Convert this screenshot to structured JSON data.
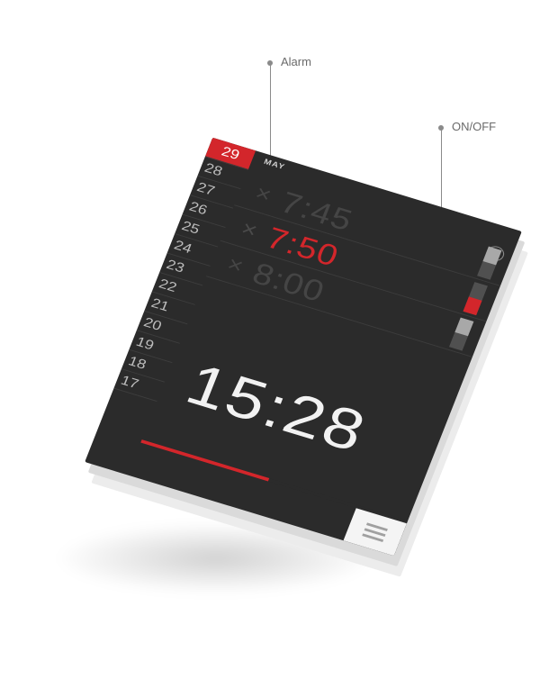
{
  "callouts": {
    "alarm_label": "Alarm",
    "onoff_label": "ON/OFF"
  },
  "header": {
    "month": "MAY",
    "badge_count": "3"
  },
  "dates": [
    {
      "label": "29",
      "active": true
    },
    {
      "label": "28"
    },
    {
      "label": "27"
    },
    {
      "label": "26"
    },
    {
      "label": "25"
    },
    {
      "label": "24"
    },
    {
      "label": "23"
    },
    {
      "label": "22"
    },
    {
      "label": "21"
    },
    {
      "label": "20"
    },
    {
      "label": "19"
    },
    {
      "label": "18"
    },
    {
      "label": "17"
    }
  ],
  "alarms": [
    {
      "time": "7:45",
      "enabled": false,
      "delete_glyph": "×"
    },
    {
      "time": "7:50",
      "enabled": true,
      "delete_glyph": "×"
    },
    {
      "time": "8:00",
      "enabled": false,
      "delete_glyph": "×"
    }
  ],
  "clock": {
    "time": "15:28"
  },
  "progress": {
    "fraction": 0.48
  },
  "icons": {
    "menu": "hamburger-icon",
    "delete": "close-icon"
  },
  "colors": {
    "accent": "#d3262b",
    "screen_bg": "#2b2b2b",
    "inactive_text": "#454545",
    "active_text": "#f2f2f2"
  }
}
